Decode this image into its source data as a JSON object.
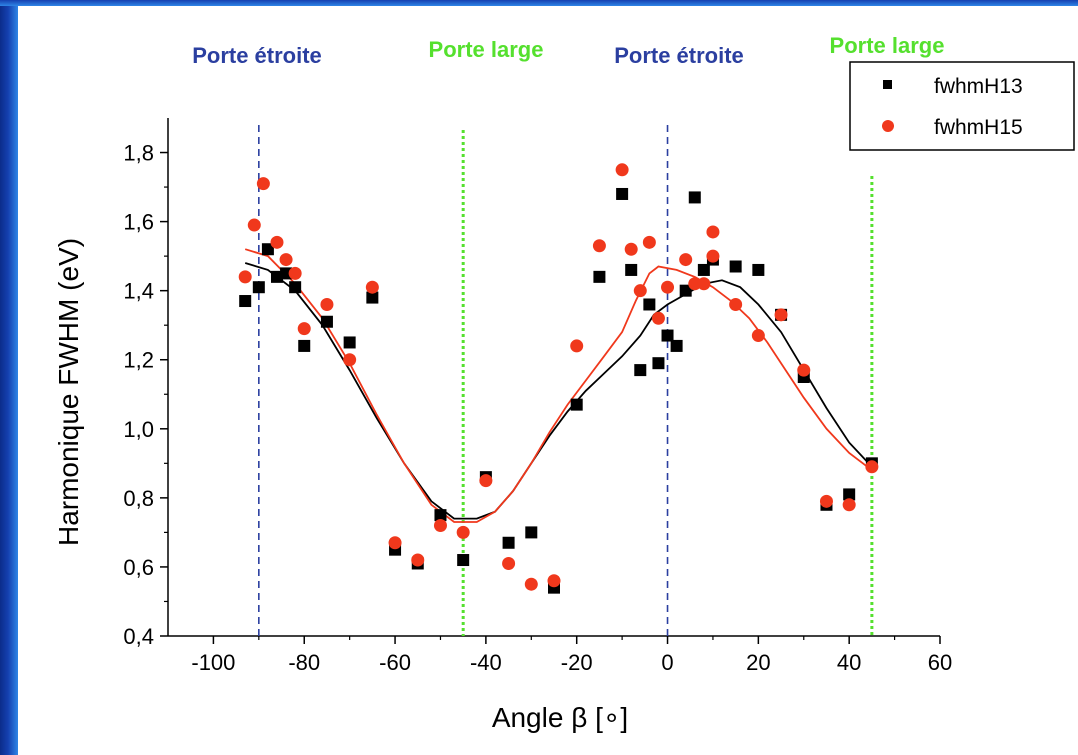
{
  "colors": {
    "narrow_gate": "#2b3fa0",
    "wide_gate": "#55e02e",
    "series_h13": "#000000",
    "series_h15": "#f0381c",
    "frame_accent": "#1540b0"
  },
  "chart_data": {
    "type": "scatter",
    "xlabel": "Angle β [∘]",
    "ylabel": "Harmonique FWHM (eV)",
    "xlim": [
      -110,
      60
    ],
    "ylim": [
      0.4,
      1.9
    ],
    "xticks": [
      "-100",
      "-80",
      "-60",
      "-40",
      "-20",
      "0",
      "20",
      "40",
      "60"
    ],
    "xtick_values": [
      -100,
      -80,
      -60,
      -40,
      -20,
      0,
      20,
      40,
      60
    ],
    "yticks": [
      "0,4",
      "0,6",
      "0,8",
      "1,0",
      "1,2",
      "1,4",
      "1,6",
      "1,8"
    ],
    "ytick_values": [
      0.4,
      0.6,
      0.8,
      1.0,
      1.2,
      1.4,
      1.6,
      1.8
    ],
    "grid": false,
    "legend_position": "top-right",
    "gates": [
      {
        "label": "Porte étroite",
        "x": -90,
        "kind": "narrow"
      },
      {
        "label": "Porte large",
        "x": -45,
        "kind": "wide"
      },
      {
        "label": "Porte étroite",
        "x": 0,
        "kind": "narrow"
      },
      {
        "label": "Porte large",
        "x": 45,
        "kind": "wide"
      }
    ],
    "series": [
      {
        "name": "fwhmH13",
        "marker": "square",
        "color": "#000000",
        "points": [
          [
            -93,
            1.37
          ],
          [
            -90,
            1.41
          ],
          [
            -88,
            1.52
          ],
          [
            -86,
            1.44
          ],
          [
            -84,
            1.45
          ],
          [
            -82,
            1.41
          ],
          [
            -80,
            1.24
          ],
          [
            -75,
            1.31
          ],
          [
            -70,
            1.25
          ],
          [
            -65,
            1.38
          ],
          [
            -60,
            0.65
          ],
          [
            -55,
            0.61
          ],
          [
            -50,
            0.75
          ],
          [
            -45,
            0.62
          ],
          [
            -40,
            0.86
          ],
          [
            -35,
            0.67
          ],
          [
            -30,
            0.7
          ],
          [
            -25,
            0.54
          ],
          [
            -20,
            1.07
          ],
          [
            -15,
            1.44
          ],
          [
            -10,
            1.68
          ],
          [
            -8,
            1.46
          ],
          [
            -6,
            1.17
          ],
          [
            -4,
            1.36
          ],
          [
            -2,
            1.19
          ],
          [
            0,
            1.27
          ],
          [
            2,
            1.24
          ],
          [
            4,
            1.4
          ],
          [
            6,
            1.67
          ],
          [
            8,
            1.46
          ],
          [
            10,
            1.49
          ],
          [
            15,
            1.47
          ],
          [
            20,
            1.46
          ],
          [
            25,
            1.33
          ],
          [
            30,
            1.15
          ],
          [
            35,
            0.78
          ],
          [
            40,
            0.81
          ],
          [
            45,
            0.9
          ]
        ],
        "fit": [
          [
            -93,
            1.48
          ],
          [
            -88,
            1.46
          ],
          [
            -82,
            1.4
          ],
          [
            -76,
            1.3
          ],
          [
            -70,
            1.17
          ],
          [
            -64,
            1.03
          ],
          [
            -58,
            0.9
          ],
          [
            -52,
            0.79
          ],
          [
            -47,
            0.74
          ],
          [
            -42,
            0.74
          ],
          [
            -38,
            0.76
          ],
          [
            -34,
            0.82
          ],
          [
            -30,
            0.9
          ],
          [
            -26,
            0.98
          ],
          [
            -22,
            1.05
          ],
          [
            -18,
            1.11
          ],
          [
            -14,
            1.16
          ],
          [
            -10,
            1.21
          ],
          [
            -6,
            1.27
          ],
          [
            -3,
            1.33
          ],
          [
            0,
            1.36
          ],
          [
            4,
            1.39
          ],
          [
            8,
            1.42
          ],
          [
            12,
            1.43
          ],
          [
            16,
            1.41
          ],
          [
            20,
            1.36
          ],
          [
            25,
            1.28
          ],
          [
            30,
            1.17
          ],
          [
            35,
            1.06
          ],
          [
            40,
            0.96
          ],
          [
            45,
            0.89
          ]
        ]
      },
      {
        "name": "fwhmH15",
        "marker": "circle",
        "color": "#f0381c",
        "points": [
          [
            -93,
            1.44
          ],
          [
            -91,
            1.59
          ],
          [
            -89,
            1.71
          ],
          [
            -86,
            1.54
          ],
          [
            -84,
            1.49
          ],
          [
            -82,
            1.45
          ],
          [
            -80,
            1.29
          ],
          [
            -75,
            1.36
          ],
          [
            -70,
            1.2
          ],
          [
            -65,
            1.41
          ],
          [
            -60,
            0.67
          ],
          [
            -55,
            0.62
          ],
          [
            -50,
            0.72
          ],
          [
            -45,
            0.7
          ],
          [
            -40,
            0.85
          ],
          [
            -35,
            0.61
          ],
          [
            -30,
            0.55
          ],
          [
            -25,
            0.56
          ],
          [
            -20,
            1.24
          ],
          [
            -15,
            1.53
          ],
          [
            -10,
            1.75
          ],
          [
            -8,
            1.52
          ],
          [
            -6,
            1.4
          ],
          [
            -4,
            1.54
          ],
          [
            -2,
            1.32
          ],
          [
            0,
            1.41
          ],
          [
            4,
            1.49
          ],
          [
            6,
            1.42
          ],
          [
            8,
            1.42
          ],
          [
            10,
            1.57
          ],
          [
            10,
            1.5
          ],
          [
            15,
            1.36
          ],
          [
            20,
            1.27
          ],
          [
            25,
            1.33
          ],
          [
            30,
            1.17
          ],
          [
            35,
            0.79
          ],
          [
            40,
            0.78
          ],
          [
            45,
            0.89
          ]
        ],
        "fit": [
          [
            -93,
            1.52
          ],
          [
            -88,
            1.5
          ],
          [
            -82,
            1.42
          ],
          [
            -76,
            1.32
          ],
          [
            -70,
            1.19
          ],
          [
            -64,
            1.04
          ],
          [
            -58,
            0.9
          ],
          [
            -52,
            0.78
          ],
          [
            -47,
            0.73
          ],
          [
            -42,
            0.73
          ],
          [
            -38,
            0.76
          ],
          [
            -34,
            0.82
          ],
          [
            -30,
            0.9
          ],
          [
            -26,
            0.99
          ],
          [
            -22,
            1.07
          ],
          [
            -18,
            1.14
          ],
          [
            -14,
            1.21
          ],
          [
            -10,
            1.28
          ],
          [
            -7,
            1.37
          ],
          [
            -4,
            1.45
          ],
          [
            -2,
            1.47
          ],
          [
            2,
            1.46
          ],
          [
            6,
            1.44
          ],
          [
            10,
            1.41
          ],
          [
            14,
            1.37
          ],
          [
            18,
            1.32
          ],
          [
            22,
            1.25
          ],
          [
            26,
            1.17
          ],
          [
            30,
            1.09
          ],
          [
            35,
            1.0
          ],
          [
            40,
            0.93
          ],
          [
            45,
            0.88
          ]
        ]
      }
    ]
  }
}
